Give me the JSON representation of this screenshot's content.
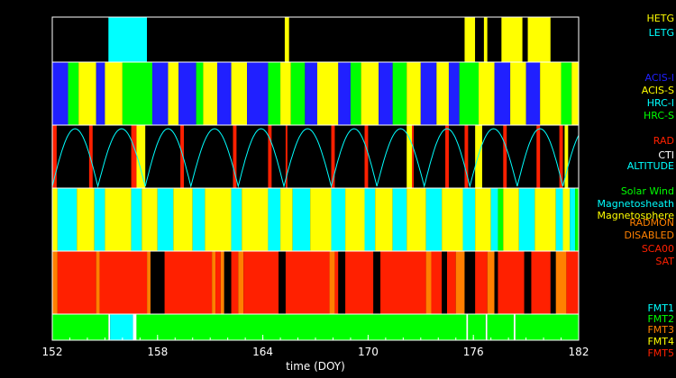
{
  "chart_data": {
    "type": "timeline",
    "xlabel": "time (DOY)",
    "xlim": [
      152,
      182
    ],
    "xticks": [
      152,
      158,
      164,
      170,
      176,
      182
    ],
    "colors": {
      "black": "#000000",
      "cyan": "#00ffff",
      "yellow": "#ffff00",
      "blue": "#2020ff",
      "green": "#00ff00",
      "red": "#ff2000",
      "orange": "#ff8000",
      "white": "#ffffff"
    },
    "panels": [
      {
        "id": "grating",
        "legend": [
          {
            "label": "HETG",
            "color": "#ffff00"
          },
          {
            "label": "LETG",
            "color": "#00ffff"
          }
        ],
        "segments": [
          [
            152.0,
            155.2,
            "black"
          ],
          [
            155.2,
            157.4,
            "cyan"
          ],
          [
            157.4,
            165.25,
            "black"
          ],
          [
            165.25,
            165.5,
            "yellow"
          ],
          [
            165.5,
            175.5,
            "black"
          ],
          [
            175.5,
            176.1,
            "yellow"
          ],
          [
            176.1,
            176.6,
            "black"
          ],
          [
            176.6,
            176.8,
            "yellow"
          ],
          [
            176.8,
            177.6,
            "black"
          ],
          [
            177.6,
            178.8,
            "yellow"
          ],
          [
            178.8,
            179.1,
            "black"
          ],
          [
            179.1,
            180.4,
            "yellow"
          ],
          [
            180.4,
            182.0,
            "black"
          ]
        ]
      },
      {
        "id": "instrument",
        "legend": [
          {
            "label": "ACIS-I",
            "color": "#2020ff"
          },
          {
            "label": "ACIS-S",
            "color": "#ffff00"
          },
          {
            "label": "HRC-I",
            "color": "#00ffff"
          },
          {
            "label": "HRC-S",
            "color": "#00ff00"
          }
        ],
        "segments": [
          [
            152.0,
            152.9,
            "blue"
          ],
          [
            152.9,
            153.5,
            "green"
          ],
          [
            153.5,
            154.5,
            "yellow"
          ],
          [
            154.5,
            155.0,
            "blue"
          ],
          [
            155.0,
            156.0,
            "yellow"
          ],
          [
            156.0,
            157.7,
            "green"
          ],
          [
            157.7,
            158.6,
            "blue"
          ],
          [
            158.6,
            159.2,
            "yellow"
          ],
          [
            159.2,
            160.2,
            "blue"
          ],
          [
            160.2,
            160.6,
            "green"
          ],
          [
            160.6,
            161.4,
            "yellow"
          ],
          [
            161.4,
            162.2,
            "blue"
          ],
          [
            162.2,
            163.1,
            "yellow"
          ],
          [
            163.1,
            164.3,
            "blue"
          ],
          [
            164.3,
            165.0,
            "green"
          ],
          [
            165.0,
            165.6,
            "yellow"
          ],
          [
            165.6,
            166.4,
            "green"
          ],
          [
            166.4,
            167.1,
            "blue"
          ],
          [
            167.1,
            168.3,
            "yellow"
          ],
          [
            168.3,
            169.0,
            "blue"
          ],
          [
            169.0,
            169.6,
            "green"
          ],
          [
            169.6,
            170.6,
            "yellow"
          ],
          [
            170.6,
            171.4,
            "blue"
          ],
          [
            171.4,
            172.2,
            "green"
          ],
          [
            172.2,
            173.0,
            "yellow"
          ],
          [
            173.0,
            173.9,
            "blue"
          ],
          [
            173.9,
            174.6,
            "yellow"
          ],
          [
            174.6,
            175.2,
            "blue"
          ],
          [
            175.2,
            176.3,
            "green"
          ],
          [
            176.3,
            177.2,
            "yellow"
          ],
          [
            177.2,
            178.1,
            "blue"
          ],
          [
            178.1,
            179.0,
            "yellow"
          ],
          [
            179.0,
            179.8,
            "blue"
          ],
          [
            179.8,
            181.0,
            "yellow"
          ],
          [
            181.0,
            181.6,
            "green"
          ],
          [
            181.6,
            182.0,
            "yellow"
          ]
        ]
      },
      {
        "id": "radiation",
        "legend": [
          {
            "label": "RAD",
            "color": "#ff2000"
          },
          {
            "label": "CTI",
            "color": "#ffffff"
          },
          {
            "label": "ALTITUDE",
            "color": "#00ffff"
          }
        ],
        "segments": [
          [
            152.0,
            152.25,
            "red"
          ],
          [
            154.1,
            154.3,
            "red"
          ],
          [
            156.5,
            156.8,
            "red"
          ],
          [
            156.8,
            157.3,
            "yellow"
          ],
          [
            159.3,
            159.5,
            "red"
          ],
          [
            162.3,
            162.5,
            "red"
          ],
          [
            164.3,
            164.5,
            "red"
          ],
          [
            165.3,
            165.4,
            "red"
          ],
          [
            167.9,
            168.1,
            "red"
          ],
          [
            169.8,
            170.0,
            "red"
          ],
          [
            172.2,
            172.5,
            "yellow"
          ],
          [
            172.5,
            172.6,
            "red"
          ],
          [
            174.4,
            174.6,
            "red"
          ],
          [
            175.5,
            175.7,
            "red"
          ],
          [
            176.1,
            176.5,
            "yellow"
          ],
          [
            177.7,
            177.9,
            "red"
          ],
          [
            179.6,
            179.8,
            "red"
          ],
          [
            180.9,
            181.1,
            "red"
          ],
          [
            181.2,
            181.4,
            "yellow"
          ]
        ],
        "altitude_perigees": [
          152.0,
          154.6,
          157.3,
          159.9,
          162.6,
          165.2,
          167.9,
          170.5,
          173.2,
          175.8,
          178.5,
          181.1
        ]
      },
      {
        "id": "environment",
        "legend": [
          {
            "label": "Solar Wind",
            "color": "#00ff00"
          },
          {
            "label": "Magnetosheath",
            "color": "#00ffff"
          },
          {
            "label": "Magnetosphere",
            "color": "#ffff00"
          }
        ],
        "segments": [
          [
            152.0,
            152.3,
            "yellow"
          ],
          [
            152.3,
            153.4,
            "cyan"
          ],
          [
            153.4,
            154.4,
            "yellow"
          ],
          [
            154.4,
            155.0,
            "cyan"
          ],
          [
            155.0,
            156.5,
            "yellow"
          ],
          [
            156.5,
            157.1,
            "cyan"
          ],
          [
            157.1,
            158.0,
            "yellow"
          ],
          [
            158.0,
            158.9,
            "cyan"
          ],
          [
            158.9,
            160.0,
            "yellow"
          ],
          [
            160.0,
            160.7,
            "cyan"
          ],
          [
            160.7,
            162.2,
            "yellow"
          ],
          [
            162.2,
            162.8,
            "cyan"
          ],
          [
            162.8,
            164.3,
            "yellow"
          ],
          [
            164.3,
            165.0,
            "cyan"
          ],
          [
            165.0,
            165.7,
            "yellow"
          ],
          [
            165.7,
            166.7,
            "cyan"
          ],
          [
            166.7,
            167.9,
            "yellow"
          ],
          [
            167.9,
            168.7,
            "cyan"
          ],
          [
            168.7,
            169.8,
            "yellow"
          ],
          [
            169.8,
            170.4,
            "cyan"
          ],
          [
            170.4,
            171.4,
            "yellow"
          ],
          [
            171.4,
            172.2,
            "cyan"
          ],
          [
            172.2,
            173.3,
            "yellow"
          ],
          [
            173.3,
            174.2,
            "cyan"
          ],
          [
            174.2,
            175.4,
            "yellow"
          ],
          [
            175.4,
            176.1,
            "cyan"
          ],
          [
            176.1,
            177.0,
            "yellow"
          ],
          [
            177.0,
            177.4,
            "cyan"
          ],
          [
            177.4,
            177.7,
            "green"
          ],
          [
            177.7,
            178.6,
            "yellow"
          ],
          [
            178.6,
            179.5,
            "cyan"
          ],
          [
            179.5,
            180.7,
            "yellow"
          ],
          [
            180.7,
            181.1,
            "cyan"
          ],
          [
            181.1,
            181.5,
            "yellow"
          ],
          [
            181.5,
            181.8,
            "cyan"
          ],
          [
            181.8,
            182.0,
            "green"
          ]
        ]
      },
      {
        "id": "radmon",
        "legend": [
          {
            "label": "RADMON",
            "color": "#ff8000"
          },
          {
            "label": "DISABLED",
            "color": "#ff8000"
          },
          {
            "label": "SCA00",
            "color": "#ff2000"
          },
          {
            "label": "SAT",
            "color": "#ff2000"
          }
        ],
        "segments": [
          [
            152.0,
            152.3,
            "orange"
          ],
          [
            152.3,
            154.5,
            "red"
          ],
          [
            154.5,
            154.7,
            "orange"
          ],
          [
            154.7,
            157.4,
            "red"
          ],
          [
            157.4,
            157.6,
            "orange"
          ],
          [
            157.6,
            158.4,
            "black"
          ],
          [
            158.4,
            161.1,
            "red"
          ],
          [
            161.1,
            161.3,
            "orange"
          ],
          [
            161.3,
            161.6,
            "red"
          ],
          [
            161.6,
            161.8,
            "orange"
          ],
          [
            161.8,
            162.2,
            "black"
          ],
          [
            162.2,
            162.6,
            "red"
          ],
          [
            162.6,
            162.9,
            "orange"
          ],
          [
            162.9,
            164.9,
            "red"
          ],
          [
            164.9,
            165.3,
            "black"
          ],
          [
            165.3,
            167.8,
            "red"
          ],
          [
            167.8,
            168.1,
            "orange"
          ],
          [
            168.1,
            168.3,
            "red"
          ],
          [
            168.3,
            168.7,
            "black"
          ],
          [
            168.7,
            170.3,
            "red"
          ],
          [
            170.3,
            170.7,
            "black"
          ],
          [
            170.7,
            173.3,
            "red"
          ],
          [
            173.3,
            173.6,
            "orange"
          ],
          [
            173.6,
            174.2,
            "red"
          ],
          [
            174.2,
            174.5,
            "black"
          ],
          [
            174.5,
            175.0,
            "red"
          ],
          [
            175.0,
            175.5,
            "orange"
          ],
          [
            175.5,
            176.1,
            "black"
          ],
          [
            176.1,
            176.8,
            "red"
          ],
          [
            176.8,
            177.2,
            "orange"
          ],
          [
            177.2,
            177.4,
            "black"
          ],
          [
            177.4,
            178.9,
            "red"
          ],
          [
            178.9,
            179.3,
            "black"
          ],
          [
            179.3,
            180.4,
            "red"
          ],
          [
            180.4,
            180.7,
            "black"
          ],
          [
            180.7,
            181.3,
            "orange"
          ],
          [
            181.3,
            182.0,
            "red"
          ]
        ]
      },
      {
        "id": "format",
        "legend": [
          {
            "label": "FMT1",
            "color": "#00ffff"
          },
          {
            "label": "FMT2",
            "color": "#00ff00"
          },
          {
            "label": "FMT3",
            "color": "#ff8000"
          },
          {
            "label": "FMT4",
            "color": "#ffff00"
          },
          {
            "label": "FMT5",
            "color": "#ff2000"
          }
        ],
        "segments": [
          [
            152.0,
            155.2,
            "green"
          ],
          [
            155.2,
            155.3,
            "white"
          ],
          [
            155.3,
            156.6,
            "cyan"
          ],
          [
            156.6,
            156.8,
            "white"
          ],
          [
            156.8,
            175.6,
            "green"
          ],
          [
            175.6,
            175.7,
            "white"
          ],
          [
            175.7,
            176.7,
            "green"
          ],
          [
            176.7,
            176.8,
            "white"
          ],
          [
            176.8,
            178.3,
            "green"
          ],
          [
            178.3,
            178.4,
            "white"
          ],
          [
            178.4,
            182.0,
            "green"
          ]
        ]
      }
    ]
  }
}
